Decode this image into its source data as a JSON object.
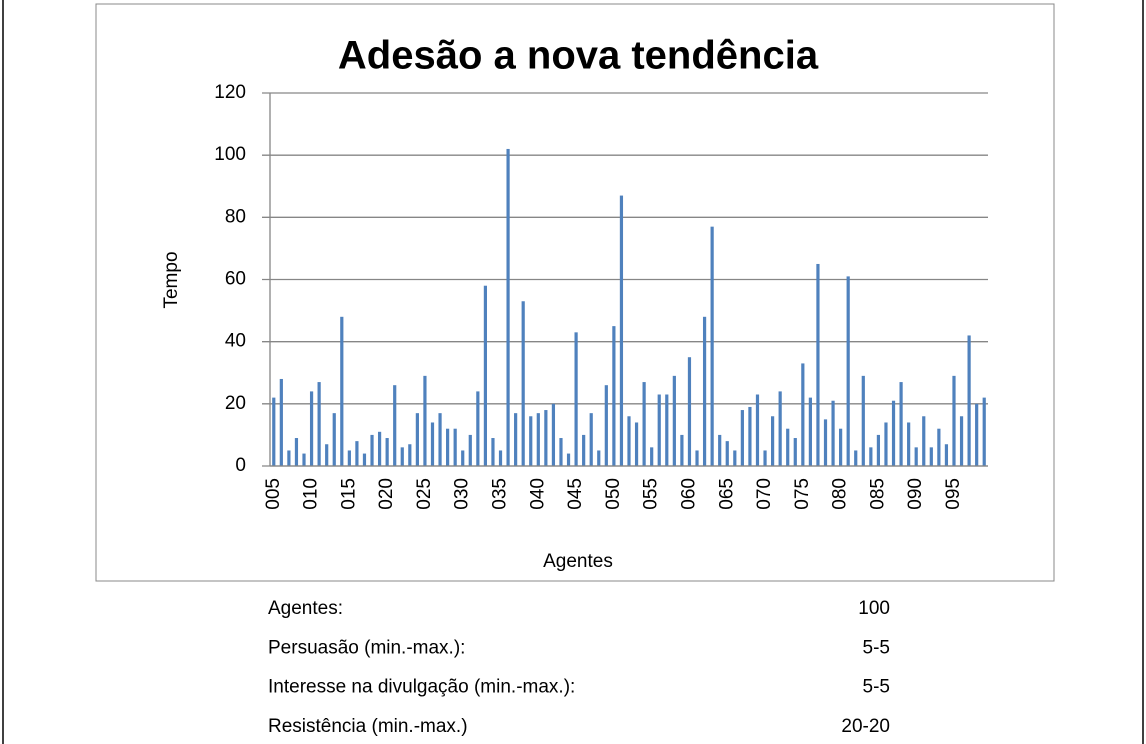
{
  "chart_data": {
    "type": "bar",
    "title": "Adesão a nova tendência",
    "x_label": "Agentes",
    "y_label": "Tempo",
    "categories": [
      "005",
      null,
      null,
      null,
      null,
      "010",
      null,
      null,
      null,
      null,
      "015",
      null,
      null,
      null,
      null,
      "020",
      null,
      null,
      null,
      null,
      "025",
      null,
      null,
      null,
      null,
      "030",
      null,
      null,
      null,
      null,
      "035",
      null,
      null,
      null,
      null,
      "040",
      null,
      null,
      null,
      null,
      "045",
      null,
      null,
      null,
      null,
      "050",
      null,
      null,
      null,
      null,
      "055",
      null,
      null,
      null,
      null,
      "060",
      null,
      null,
      null,
      null,
      "065",
      null,
      null,
      null,
      null,
      "070",
      null,
      null,
      null,
      null,
      "075",
      null,
      null,
      null,
      null,
      "080",
      null,
      null,
      null,
      null,
      "085",
      null,
      null,
      null,
      null,
      "090",
      null,
      null,
      null,
      null,
      "095",
      null,
      null,
      null,
      null
    ],
    "values": [
      22,
      28,
      5,
      9,
      4,
      24,
      27,
      7,
      17,
      48,
      5,
      8,
      4,
      10,
      11,
      9,
      26,
      6,
      7,
      17,
      29,
      14,
      17,
      12,
      12,
      5,
      10,
      24,
      58,
      9,
      5,
      102,
      17,
      53,
      16,
      17,
      18,
      20,
      9,
      4,
      43,
      10,
      17,
      5,
      26,
      45,
      87,
      16,
      14,
      27,
      6,
      23,
      23,
      29,
      10,
      35,
      5,
      48,
      77,
      10,
      8,
      5,
      18,
      19,
      23,
      5,
      16,
      24,
      12,
      9,
      33,
      22,
      65,
      15,
      21,
      12,
      61,
      5,
      29,
      6,
      10,
      14,
      21,
      27,
      14,
      6,
      16,
      6,
      12,
      7,
      29,
      16,
      42,
      20,
      22
    ],
    "color": "#4f81bd",
    "ylim": [
      0,
      120
    ],
    "yticks": [
      0,
      20,
      40,
      60,
      80,
      100,
      120
    ],
    "grid": true
  },
  "info": [
    {
      "label": "Agentes:",
      "value": "100"
    },
    {
      "label": "Persuasão (min.-max.):",
      "value": "5-5"
    },
    {
      "label": "Interesse na divulgação (min.-max.):",
      "value": "5-5"
    },
    {
      "label": "Resistência (min.-max.)",
      "value": "20-20"
    }
  ]
}
